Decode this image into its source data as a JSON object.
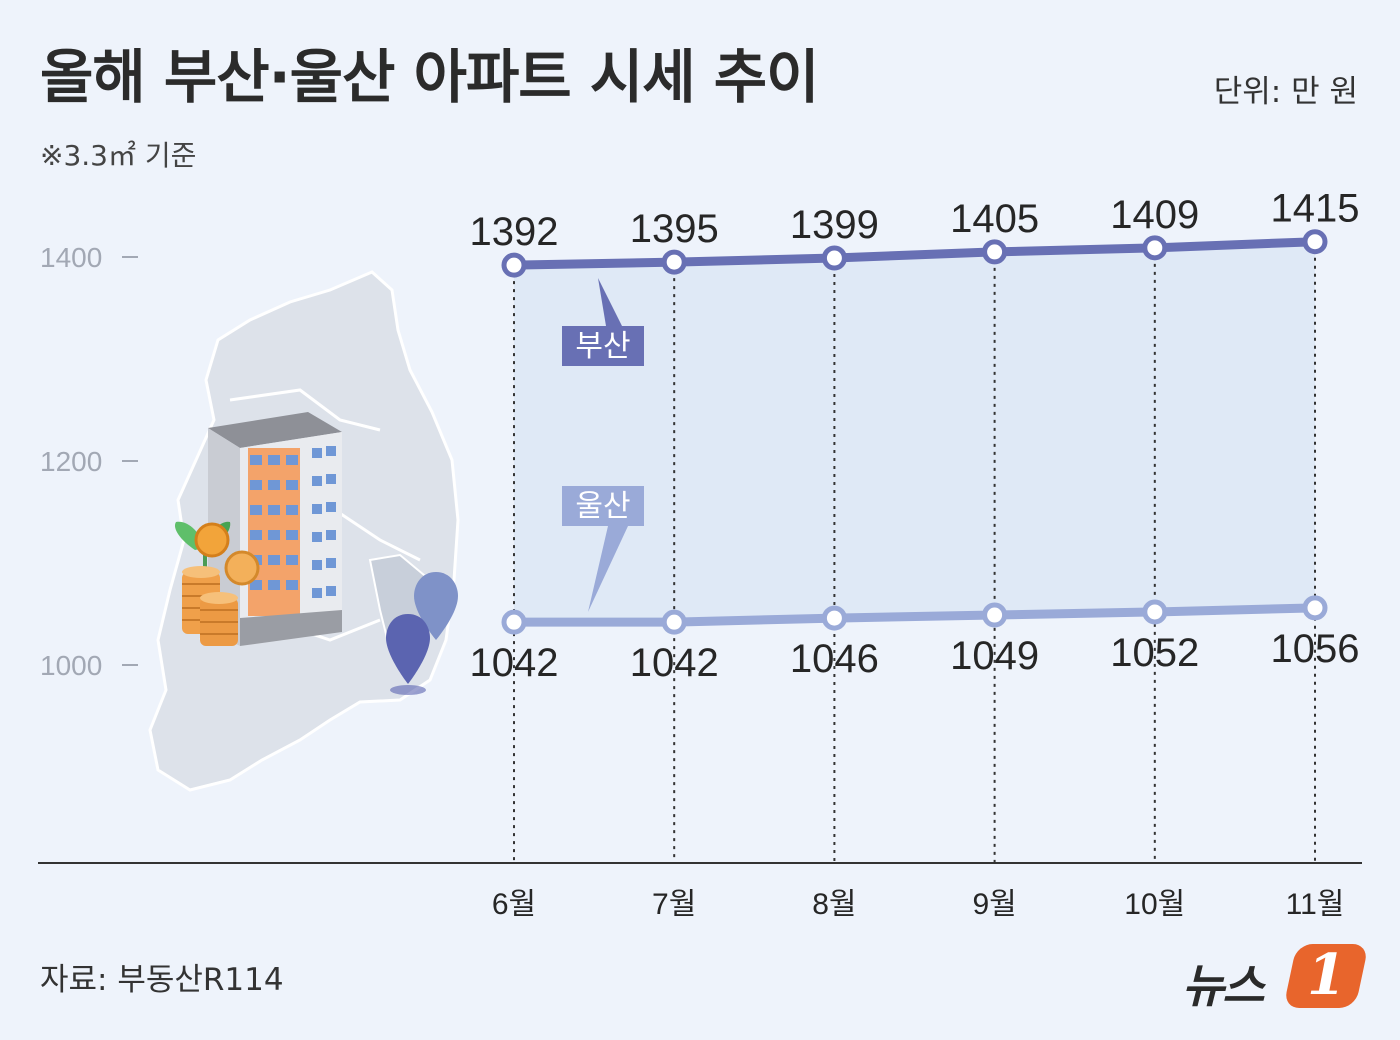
{
  "header": {
    "title": "올해 부산·울산 아파트 시세 추이",
    "unit": "단위: 만 원",
    "note": "※3.3㎡ 기준"
  },
  "footer": {
    "source": "자료: 부동산R114",
    "logo_text": "뉴스",
    "logo_number": "1"
  },
  "icons": [
    "korea-map-icon",
    "apartment-building-icon",
    "coins-icon",
    "location-pin-icon"
  ],
  "colors": {
    "busan": "#6870b4",
    "ulsan": "#9aaad8",
    "fill": "#dce6f5",
    "background": "#eef3fb"
  },
  "chart_data": {
    "type": "line",
    "categories": [
      "6월",
      "7월",
      "8월",
      "9월",
      "10월",
      "11월"
    ],
    "series": [
      {
        "name": "부산",
        "values": [
          1392,
          1395,
          1399,
          1405,
          1409,
          1415
        ]
      },
      {
        "name": "울산",
        "values": [
          1042,
          1042,
          1046,
          1049,
          1052,
          1056
        ]
      }
    ],
    "yticks": [
      1000,
      1200,
      1400
    ],
    "ylim": [
      1000,
      1400
    ],
    "xlabel": "",
    "ylabel": "",
    "grid": false,
    "legend": "inline labels"
  }
}
